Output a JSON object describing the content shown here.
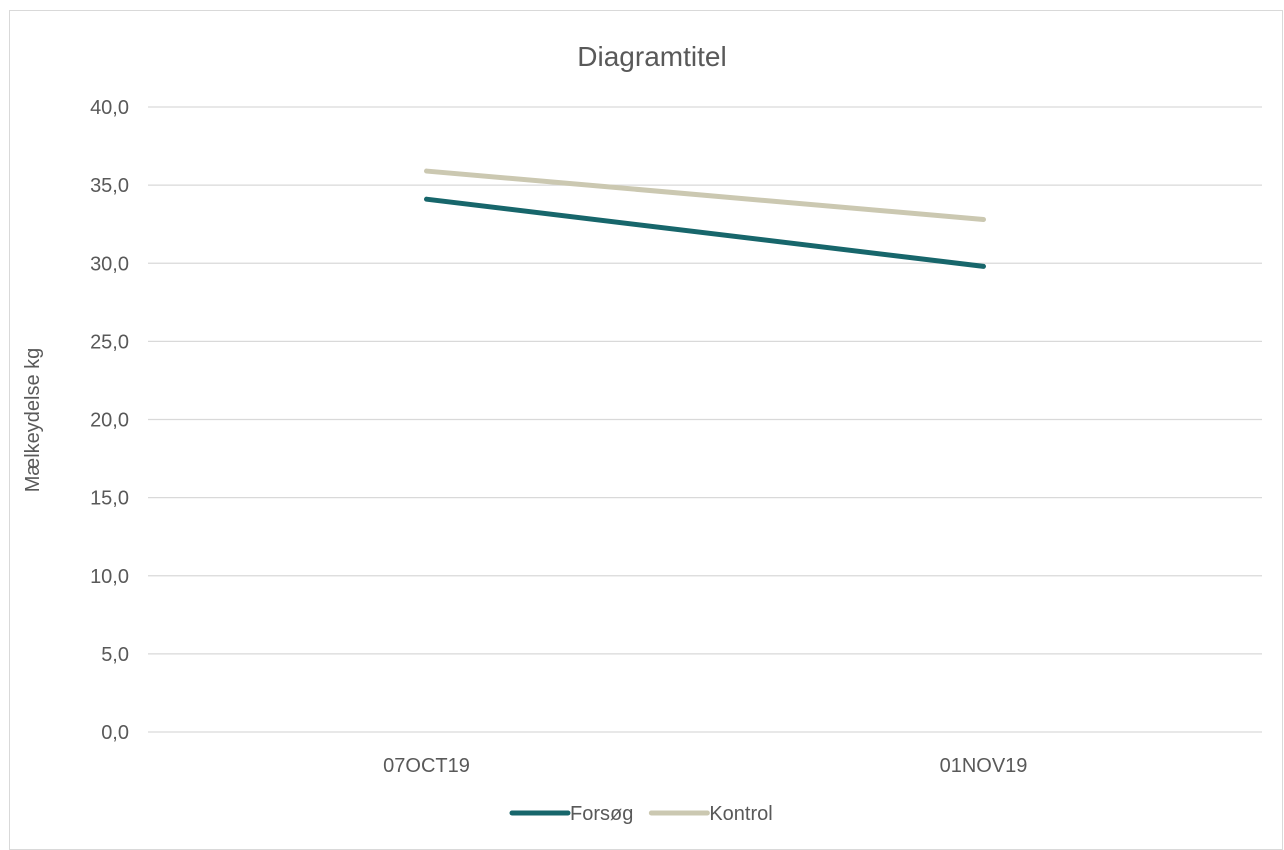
{
  "chart_data": {
    "type": "line",
    "title": "Diagramtitel",
    "xlabel": "",
    "ylabel": "Mælkeydelse kg",
    "categories": [
      "07OCT19",
      "01NOV19"
    ],
    "series": [
      {
        "name": "Forsøg",
        "values": [
          34.1,
          29.8
        ],
        "color": "#17666b"
      },
      {
        "name": "Kontrol",
        "values": [
          35.9,
          32.8
        ],
        "color": "#cbc8b1"
      }
    ],
    "ylim": [
      0,
      40
    ],
    "yticks": [
      "0,0",
      "5,0",
      "10,0",
      "15,0",
      "20,0",
      "25,0",
      "30,0",
      "35,0",
      "40,0"
    ],
    "grid": true,
    "legend": "bottom"
  }
}
